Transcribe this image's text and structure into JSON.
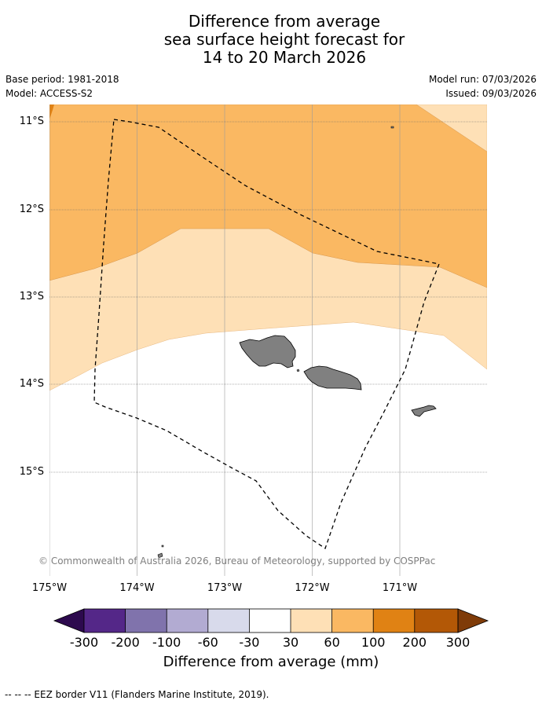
{
  "title": {
    "line1": "Difference from average",
    "line2": "sea surface height forecast for",
    "line3": "14 to 20 March 2026"
  },
  "meta": {
    "base_period": "Base period: 1981-2018",
    "model": "Model: ACCESS-S2",
    "model_run": "Model run: 07/03/2026",
    "issued": "Issued: 09/03/2026"
  },
  "map": {
    "lon_range": [
      -175,
      -170
    ],
    "lat_range": [
      -16.3,
      -10.8
    ],
    "lat_ticks": [
      "11°S",
      "12°S",
      "13°S",
      "14°S",
      "15°S"
    ],
    "lon_ticks": [
      "175°W",
      "174°W",
      "173°W",
      "172°W",
      "171°W"
    ],
    "copyright": "© Commonwealth of Australia 2026, Bureau of Meteorology, supported by COSPPac"
  },
  "colorbar": {
    "ticks": [
      "-300",
      "-200",
      "-100",
      "-60",
      "-30",
      "30",
      "60",
      "100",
      "200",
      "300"
    ],
    "label": "Difference from average (mm)",
    "colors": {
      "below": "#2d0a4e",
      "neg300_200": "#542788",
      "neg200_100": "#8073ac",
      "neg100_60": "#b2abd2",
      "neg60_30": "#d8daeb",
      "neg30_30": "#ffffff",
      "pos30_60": "#fee0b6",
      "pos60_100": "#fab862",
      "pos100_200": "#e08214",
      "pos200_300": "#b35806",
      "above": "#7f3b08"
    }
  },
  "legend": {
    "eez_label": "--  --  -- EEZ border V11 (Flanders Marine Institute, 2019)."
  }
}
